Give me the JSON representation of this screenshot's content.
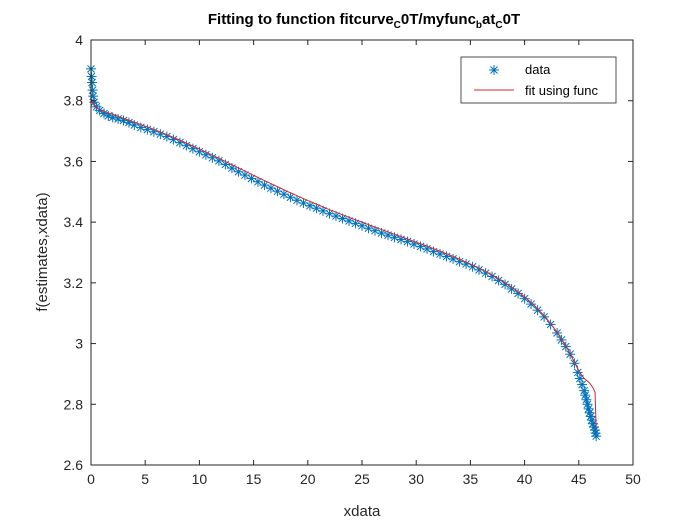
{
  "chart_data": {
    "type": "scatter",
    "title": {
      "part1": "Fitting to function fitcurve",
      "sub1": "C",
      "part2": "0T/myfunc",
      "sub2": "b",
      "part3": "at",
      "sub3": "C",
      "part4": "0T"
    },
    "xlabel": "xdata",
    "ylabel": "f(estimates,xdata)",
    "xlim": [
      0,
      50
    ],
    "ylim": [
      2.6,
      4.0
    ],
    "xticks": [
      0,
      5,
      10,
      15,
      20,
      25,
      30,
      35,
      40,
      45,
      50
    ],
    "yticks": [
      2.6,
      2.8,
      3.0,
      3.2,
      3.4,
      3.6,
      3.8,
      4.0
    ],
    "xtick_labels": [
      "0",
      "5",
      "10",
      "15",
      "20",
      "25",
      "30",
      "35",
      "40",
      "45",
      "50"
    ],
    "ytick_labels": [
      "2.6",
      "2.8",
      "3",
      "3.2",
      "3.4",
      "3.6",
      "3.8",
      "4"
    ],
    "grid": false,
    "legend": {
      "position": "top-right",
      "entries": [
        "data",
        "fit using func"
      ]
    },
    "colors": {
      "data": "#0072BD",
      "fit": "#D62728"
    },
    "series": [
      {
        "name": "data",
        "marker": "asterisk",
        "x": [
          0.0,
          0.05,
          0.1,
          0.15,
          0.2,
          0.3,
          0.5,
          0.8,
          1.2,
          1.6,
          2.0,
          2.5,
          3.0,
          3.5,
          4.0,
          4.6,
          5.2,
          5.8,
          6.4,
          7.0,
          7.6,
          8.2,
          8.8,
          9.4,
          10.0,
          10.6,
          11.2,
          11.8,
          12.4,
          13.0,
          13.6,
          14.2,
          14.8,
          15.4,
          16.0,
          16.6,
          17.2,
          17.8,
          18.4,
          19.0,
          19.6,
          20.2,
          20.8,
          21.4,
          22.0,
          22.6,
          23.2,
          23.8,
          24.4,
          25.0,
          25.6,
          26.2,
          26.8,
          27.4,
          28.0,
          28.6,
          29.2,
          29.8,
          30.4,
          31.0,
          31.6,
          32.2,
          32.8,
          33.4,
          34.0,
          34.6,
          35.2,
          35.8,
          36.4,
          37.0,
          37.6,
          38.2,
          38.8,
          39.4,
          40.0,
          40.6,
          41.2,
          41.8,
          42.4,
          43.0,
          43.4,
          43.8,
          44.2,
          44.6,
          44.9,
          45.1,
          45.3,
          45.5,
          45.6,
          45.7,
          45.8,
          45.9,
          46.0,
          46.1,
          46.2,
          46.3,
          46.4,
          46.5,
          46.55,
          46.6
        ],
        "y": [
          3.905,
          3.88,
          3.86,
          3.835,
          3.815,
          3.795,
          3.78,
          3.768,
          3.758,
          3.75,
          3.745,
          3.74,
          3.735,
          3.728,
          3.72,
          3.712,
          3.705,
          3.698,
          3.69,
          3.682,
          3.672,
          3.662,
          3.652,
          3.642,
          3.632,
          3.622,
          3.612,
          3.602,
          3.59,
          3.578,
          3.566,
          3.555,
          3.544,
          3.533,
          3.522,
          3.512,
          3.502,
          3.492,
          3.482,
          3.472,
          3.463,
          3.454,
          3.446,
          3.437,
          3.428,
          3.42,
          3.412,
          3.404,
          3.396,
          3.388,
          3.38,
          3.372,
          3.364,
          3.357,
          3.35,
          3.343,
          3.336,
          3.328,
          3.32,
          3.312,
          3.303,
          3.295,
          3.287,
          3.279,
          3.27,
          3.262,
          3.253,
          3.243,
          3.232,
          3.221,
          3.208,
          3.195,
          3.18,
          3.165,
          3.148,
          3.13,
          3.11,
          3.088,
          3.063,
          3.035,
          3.012,
          2.99,
          2.965,
          2.935,
          2.905,
          2.885,
          2.865,
          2.845,
          2.83,
          2.815,
          2.8,
          2.785,
          2.772,
          2.76,
          2.748,
          2.736,
          2.725,
          2.715,
          2.705,
          2.695
        ]
      },
      {
        "name": "fit using func",
        "marker": "line",
        "x": [
          0.0,
          0.1,
          0.3,
          0.6,
          1.0,
          1.5,
          2.0,
          3.0,
          4.0,
          5.0,
          6.0,
          7.0,
          8.0,
          9.0,
          10.0,
          11.0,
          12.0,
          13.0,
          14.0,
          15.0,
          16.0,
          17.0,
          18.0,
          19.0,
          20.0,
          21.0,
          22.0,
          23.0,
          24.0,
          25.0,
          26.0,
          27.0,
          28.0,
          29.0,
          30.0,
          31.0,
          32.0,
          33.0,
          34.0,
          35.0,
          36.0,
          37.0,
          38.0,
          39.0,
          40.0,
          41.0,
          42.0,
          43.0,
          44.0,
          44.5,
          45.0,
          45.5,
          46.0,
          46.3,
          46.5,
          46.6
        ],
        "y": [
          3.805,
          3.795,
          3.785,
          3.775,
          3.768,
          3.761,
          3.755,
          3.742,
          3.729,
          3.716,
          3.703,
          3.688,
          3.673,
          3.657,
          3.641,
          3.624,
          3.607,
          3.589,
          3.572,
          3.554,
          3.537,
          3.52,
          3.503,
          3.487,
          3.471,
          3.456,
          3.441,
          3.427,
          3.413,
          3.4,
          3.386,
          3.373,
          3.36,
          3.347,
          3.334,
          3.321,
          3.307,
          3.293,
          3.278,
          3.262,
          3.245,
          3.226,
          3.205,
          3.181,
          3.154,
          3.122,
          3.084,
          3.037,
          2.98,
          2.945,
          2.91,
          2.885,
          2.87,
          2.855,
          2.84,
          2.72
        ]
      }
    ]
  }
}
